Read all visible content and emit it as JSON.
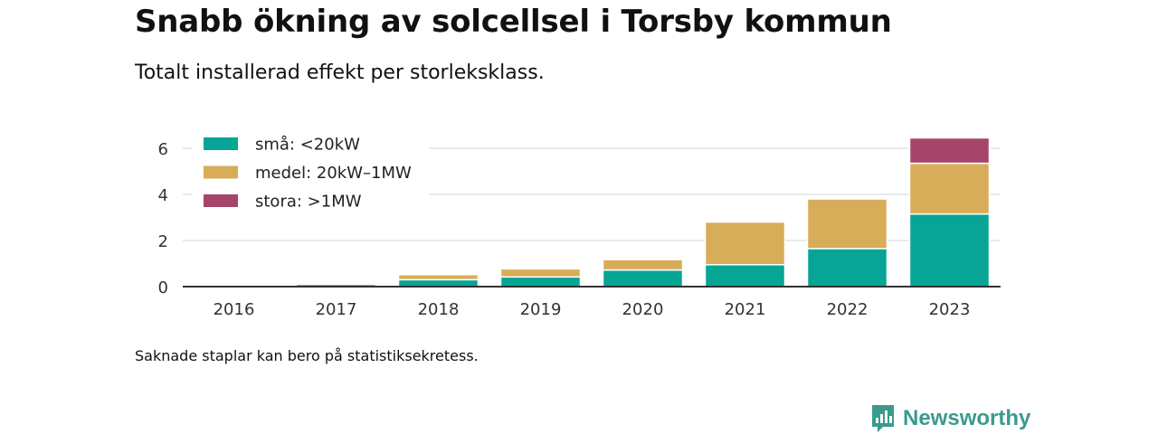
{
  "title": "Snabb ökning av solcellsel i Torsby kommun",
  "subtitle": "Totalt installerad effekt per storleksklass.",
  "footnote": "Saknade staplar kan bero på statistiksekretess.",
  "brand": {
    "name": "Newsworthy",
    "icon": "newsworthy-logo-icon"
  },
  "colors": {
    "small": "#06a596",
    "medium": "#d8ad59",
    "large": "#a6456a",
    "grid": "#dddddd",
    "axis": "#333333"
  },
  "chart_data": {
    "type": "bar",
    "stacked": true,
    "categories": [
      "2016",
      "2017",
      "2018",
      "2019",
      "2020",
      "2021",
      "2022",
      "2023"
    ],
    "series": [
      {
        "name": "små: <20kW",
        "color": "#06a596",
        "values": [
          0.02,
          0.1,
          0.3,
          0.42,
          0.72,
          0.95,
          1.65,
          3.15
        ]
      },
      {
        "name": "medel: 20kW–1MW",
        "color": "#d8ad59",
        "values": [
          0,
          0.02,
          0.22,
          0.35,
          0.45,
          1.85,
          2.15,
          2.2
        ]
      },
      {
        "name": "stora: >1MW",
        "color": "#a6456a",
        "values": [
          0,
          0,
          0,
          0,
          0,
          0,
          0,
          1.1
        ]
      }
    ],
    "yticks": [
      0,
      2,
      4,
      6
    ],
    "ylim": [
      0,
      7
    ],
    "grid": true,
    "legend_position": "top-left"
  }
}
